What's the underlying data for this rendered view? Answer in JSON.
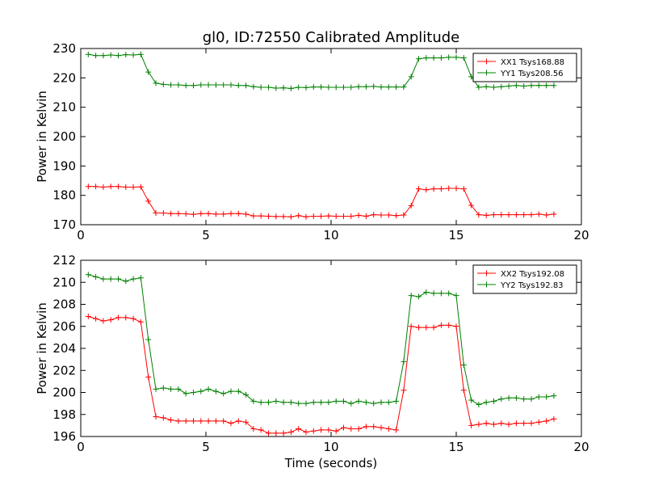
{
  "chart_data": [
    {
      "type": "line",
      "title": "gl0, ID:72550 Calibrated Amplitude",
      "xlabel": "",
      "ylabel": "Power in Kelvin",
      "xlim": [
        0,
        20
      ],
      "ylim": [
        170,
        230
      ],
      "xticks": [
        0,
        5,
        10,
        15,
        20
      ],
      "yticks": [
        170,
        180,
        190,
        200,
        210,
        220,
        230
      ],
      "grid": false,
      "legend_position": "top-right",
      "x": [
        0.3,
        0.6,
        0.9,
        1.2,
        1.5,
        1.8,
        2.1,
        2.4,
        2.7,
        3.0,
        3.3,
        3.6,
        3.9,
        4.2,
        4.5,
        4.8,
        5.1,
        5.4,
        5.7,
        6.0,
        6.3,
        6.6,
        6.9,
        7.2,
        7.5,
        7.8,
        8.1,
        8.4,
        8.7,
        9.0,
        9.3,
        9.6,
        9.9,
        10.2,
        10.5,
        10.8,
        11.1,
        11.4,
        11.7,
        12.0,
        12.3,
        12.6,
        12.9,
        13.2,
        13.5,
        13.8,
        14.1,
        14.4,
        14.7,
        15.0,
        15.3,
        15.6,
        15.9,
        16.2,
        16.5,
        16.8,
        17.1,
        17.4,
        17.7,
        18.0,
        18.3,
        18.6,
        18.9
      ],
      "series": [
        {
          "name": "XX1 Tsys168.88",
          "color": "#ff0000",
          "values": [
            183.0,
            183.0,
            182.8,
            183.0,
            183.0,
            182.8,
            182.8,
            182.9,
            178.0,
            174.0,
            174.0,
            173.8,
            173.8,
            173.7,
            173.5,
            173.8,
            173.8,
            173.6,
            173.6,
            173.8,
            173.8,
            173.6,
            173.0,
            173.0,
            172.9,
            172.8,
            172.8,
            172.7,
            173.1,
            172.7,
            172.9,
            172.9,
            173.0,
            172.9,
            172.9,
            172.9,
            173.2,
            172.9,
            173.4,
            173.3,
            173.3,
            173.1,
            173.3,
            176.5,
            182.2,
            181.9,
            182.2,
            182.2,
            182.4,
            182.4,
            182.2,
            176.6,
            173.4,
            173.2,
            173.4,
            173.4,
            173.4,
            173.4,
            173.4,
            173.4,
            173.6,
            173.3,
            173.6
          ]
        },
        {
          "name": "YY1 Tsys208.56",
          "color": "#008000",
          "values": [
            228.0,
            227.6,
            227.6,
            227.8,
            227.6,
            227.9,
            227.8,
            228.0,
            222.0,
            218.2,
            217.8,
            217.6,
            217.6,
            217.4,
            217.4,
            217.6,
            217.6,
            217.6,
            217.6,
            217.6,
            217.4,
            217.4,
            217.0,
            216.8,
            216.8,
            216.5,
            216.6,
            216.4,
            216.8,
            216.7,
            216.9,
            216.9,
            216.8,
            216.8,
            216.8,
            216.8,
            217.0,
            217.0,
            217.1,
            216.9,
            216.9,
            216.9,
            216.9,
            220.4,
            226.5,
            226.8,
            226.8,
            226.8,
            227.0,
            227.0,
            226.8,
            220.4,
            216.8,
            217.0,
            216.8,
            217.0,
            217.2,
            217.4,
            217.2,
            217.4,
            217.4,
            217.4,
            217.4
          ]
        }
      ]
    },
    {
      "type": "line",
      "title": "",
      "xlabel": "Time (seconds)",
      "ylabel": "Power in Kelvin",
      "xlim": [
        0,
        20
      ],
      "ylim": [
        196,
        212
      ],
      "xticks": [
        0,
        5,
        10,
        15,
        20
      ],
      "yticks": [
        196,
        198,
        200,
        202,
        204,
        206,
        208,
        210,
        212
      ],
      "grid": false,
      "legend_position": "top-right",
      "x": [
        0.3,
        0.6,
        0.9,
        1.2,
        1.5,
        1.8,
        2.1,
        2.4,
        2.7,
        3.0,
        3.3,
        3.6,
        3.9,
        4.2,
        4.5,
        4.8,
        5.1,
        5.4,
        5.7,
        6.0,
        6.3,
        6.6,
        6.9,
        7.2,
        7.5,
        7.8,
        8.1,
        8.4,
        8.7,
        9.0,
        9.3,
        9.6,
        9.9,
        10.2,
        10.5,
        10.8,
        11.1,
        11.4,
        11.7,
        12.0,
        12.3,
        12.6,
        12.9,
        13.2,
        13.5,
        13.8,
        14.1,
        14.4,
        14.7,
        15.0,
        15.3,
        15.6,
        15.9,
        16.2,
        16.5,
        16.8,
        17.1,
        17.4,
        17.7,
        18.0,
        18.3,
        18.6,
        18.9
      ],
      "series": [
        {
          "name": "XX2 Tsys192.08",
          "color": "#ff0000",
          "values": [
            206.9,
            206.7,
            206.5,
            206.6,
            206.8,
            206.8,
            206.7,
            206.4,
            201.4,
            197.8,
            197.7,
            197.5,
            197.4,
            197.4,
            197.4,
            197.4,
            197.4,
            197.4,
            197.4,
            197.2,
            197.4,
            197.3,
            196.7,
            196.6,
            196.3,
            196.3,
            196.3,
            196.4,
            196.7,
            196.4,
            196.5,
            196.6,
            196.6,
            196.5,
            196.8,
            196.7,
            196.7,
            196.9,
            196.9,
            196.8,
            196.7,
            196.6,
            200.2,
            206.0,
            205.9,
            205.9,
            205.9,
            206.1,
            206.1,
            206.0,
            200.2,
            197.0,
            197.1,
            197.2,
            197.1,
            197.2,
            197.1,
            197.2,
            197.2,
            197.2,
            197.3,
            197.4,
            197.6
          ]
        },
        {
          "name": "YY2 Tsys192.83",
          "color": "#008000",
          "values": [
            210.7,
            210.5,
            210.3,
            210.3,
            210.3,
            210.1,
            210.3,
            210.4,
            204.8,
            200.3,
            200.4,
            200.3,
            200.3,
            199.9,
            200.0,
            200.1,
            200.3,
            200.1,
            199.9,
            200.1,
            200.1,
            199.8,
            199.2,
            199.1,
            199.1,
            199.2,
            199.1,
            199.1,
            199.0,
            199.0,
            199.1,
            199.1,
            199.1,
            199.2,
            199.2,
            199.0,
            199.2,
            199.1,
            199.0,
            199.1,
            199.1,
            199.2,
            202.8,
            208.8,
            208.7,
            209.1,
            209.0,
            209.0,
            209.0,
            208.8,
            202.5,
            199.3,
            198.9,
            199.1,
            199.2,
            199.4,
            199.5,
            199.5,
            199.4,
            199.4,
            199.6,
            199.6,
            199.7
          ]
        }
      ]
    }
  ]
}
